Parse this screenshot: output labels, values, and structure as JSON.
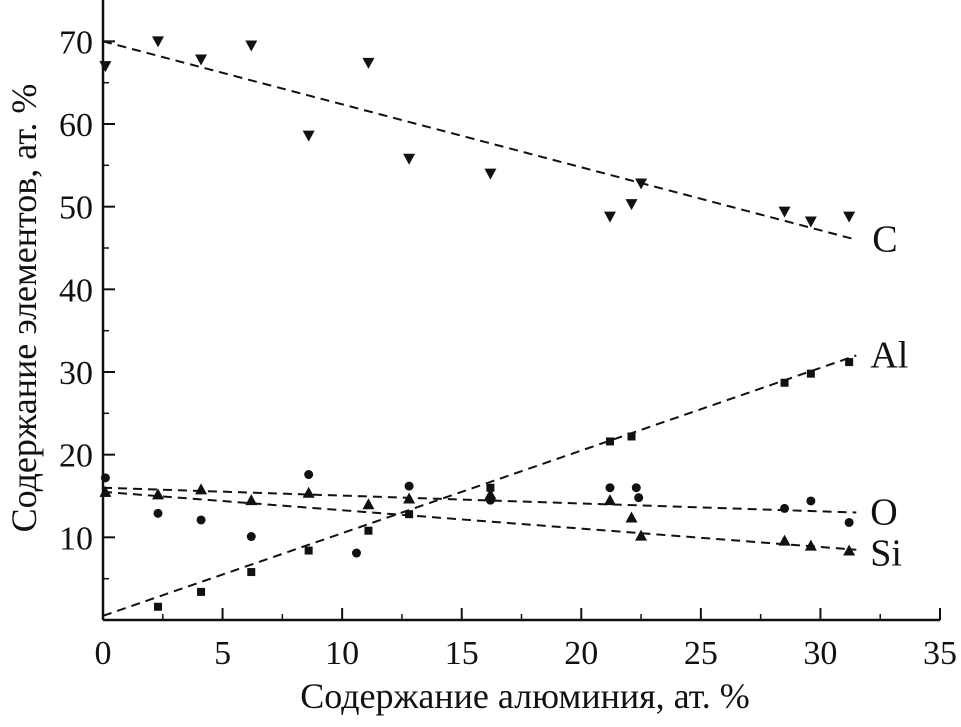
{
  "chart_data": {
    "type": "scatter",
    "title": "",
    "xlabel": "Содержание алюминия, ат. %",
    "ylabel": "Содержание элементов, ат. %",
    "xlim": [
      0,
      35
    ],
    "ylim": [
      0,
      75
    ],
    "x_ticks": [
      "0",
      "5",
      "10",
      "15",
      "20",
      "25",
      "30",
      "35"
    ],
    "y_ticks": [
      "10",
      "20",
      "30",
      "40",
      "50",
      "60",
      "70"
    ],
    "grid": false,
    "legend": "none",
    "series": [
      {
        "name": "C",
        "marker": "triangle-down",
        "points": [
          [
            0.1,
            67.0
          ],
          [
            2.3,
            70.0
          ],
          [
            4.1,
            67.8
          ],
          [
            6.2,
            69.5
          ],
          [
            8.6,
            58.6
          ],
          [
            11.1,
            67.4
          ],
          [
            12.8,
            55.8
          ],
          [
            16.2,
            54.0
          ],
          [
            21.2,
            48.8
          ],
          [
            22.1,
            50.3
          ],
          [
            22.5,
            52.8
          ],
          [
            28.5,
            49.4
          ],
          [
            29.6,
            48.2
          ],
          [
            31.2,
            48.8
          ]
        ],
        "trend": [
          [
            0.0,
            70.0
          ],
          [
            31.5,
            46.0
          ]
        ]
      },
      {
        "name": "Al",
        "marker": "square",
        "points": [
          [
            2.3,
            1.6
          ],
          [
            4.1,
            3.4
          ],
          [
            6.2,
            5.8
          ],
          [
            8.6,
            8.4
          ],
          [
            11.1,
            10.8
          ],
          [
            12.8,
            12.8
          ],
          [
            16.2,
            16.0
          ],
          [
            21.2,
            21.6
          ],
          [
            22.1,
            22.2
          ],
          [
            28.5,
            28.7
          ],
          [
            29.6,
            29.8
          ],
          [
            31.2,
            31.2
          ]
        ],
        "trend": [
          [
            0.0,
            0.5
          ],
          [
            31.5,
            32.0
          ]
        ]
      },
      {
        "name": "O",
        "marker": "circle",
        "points": [
          [
            0.1,
            17.2
          ],
          [
            2.3,
            12.9
          ],
          [
            4.1,
            12.1
          ],
          [
            6.2,
            10.1
          ],
          [
            8.6,
            17.6
          ],
          [
            10.6,
            8.1
          ],
          [
            12.8,
            16.2
          ],
          [
            16.2,
            14.5
          ],
          [
            21.2,
            16.0
          ],
          [
            22.3,
            16.0
          ],
          [
            22.4,
            14.8
          ],
          [
            28.5,
            13.5
          ],
          [
            29.6,
            14.4
          ],
          [
            31.2,
            11.8
          ]
        ],
        "trend": [
          [
            0.0,
            16.0
          ],
          [
            31.5,
            13.0
          ]
        ]
      },
      {
        "name": "Si",
        "marker": "triangle-up",
        "points": [
          [
            0.1,
            15.5
          ],
          [
            2.3,
            15.2
          ],
          [
            4.1,
            15.8
          ],
          [
            6.2,
            14.5
          ],
          [
            8.6,
            15.4
          ],
          [
            11.1,
            14.0
          ],
          [
            12.8,
            14.7
          ],
          [
            16.2,
            15.2
          ],
          [
            21.2,
            14.5
          ],
          [
            22.1,
            12.4
          ],
          [
            22.5,
            10.2
          ],
          [
            28.5,
            9.6
          ],
          [
            29.6,
            9.0
          ],
          [
            31.2,
            8.4
          ]
        ],
        "trend": [
          [
            0.0,
            15.5
          ],
          [
            31.5,
            8.5
          ]
        ]
      }
    ]
  },
  "x_tick_values": [
    0,
    5,
    10,
    15,
    20,
    25,
    30,
    35
  ],
  "y_tick_values": [
    10,
    20,
    30,
    40,
    50,
    60,
    70
  ],
  "colors": {
    "ink": "#111111",
    "background": "#ffffff"
  }
}
